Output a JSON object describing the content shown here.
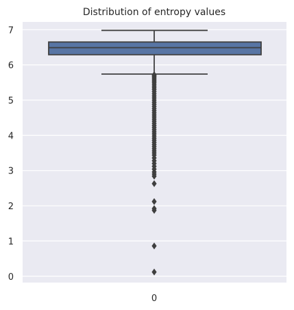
{
  "chart_data": {
    "type": "box",
    "title": "Distribution of entropy values",
    "xlabel": "",
    "ylabel": "",
    "categories": [
      "0"
    ],
    "ylim": [
      -0.18,
      7.22
    ],
    "y_ticks": [
      "0",
      "1",
      "2",
      "3",
      "4",
      "5",
      "6",
      "7"
    ],
    "grid": true,
    "box": {
      "whisker_low": 5.74,
      "q1": 6.29,
      "median": 6.49,
      "q3": 6.65,
      "whisker_high": 6.98
    },
    "outliers": [
      5.72,
      5.69,
      5.66,
      5.62,
      5.58,
      5.54,
      5.5,
      5.45,
      5.4,
      5.35,
      5.3,
      5.24,
      5.18,
      5.12,
      5.06,
      5.0,
      4.94,
      4.88,
      4.82,
      4.76,
      4.7,
      4.64,
      4.58,
      4.52,
      4.46,
      4.4,
      4.34,
      4.28,
      4.22,
      4.16,
      4.1,
      4.04,
      3.98,
      3.92,
      3.86,
      3.8,
      3.74,
      3.68,
      3.62,
      3.56,
      3.5,
      3.44,
      3.36,
      3.28,
      3.2,
      3.12,
      3.04,
      2.96,
      2.9,
      2.84,
      2.63,
      2.12,
      1.92,
      1.87,
      0.86,
      0.12
    ],
    "colors": {
      "box_fill": "#5875a4",
      "line": "#3f3f3f",
      "outlier": "#3f3f3f",
      "plot_bg": "#eaeaf2",
      "grid": "#ffffff"
    }
  }
}
